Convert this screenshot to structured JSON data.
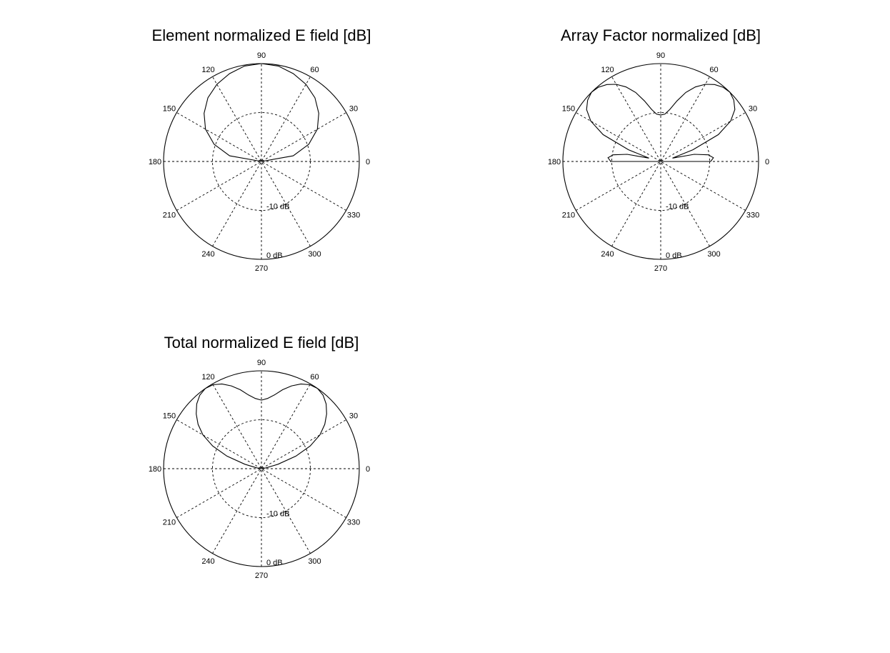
{
  "chart_data": [
    {
      "type": "line",
      "projection": "polar",
      "title": "Element normalized E field [dB]",
      "angle_ticks": [
        "0",
        "30",
        "60",
        "90",
        "120",
        "150",
        "180",
        "210",
        "240",
        "270",
        "300",
        "330"
      ],
      "radial_labels": [
        "-10 dB",
        "0 dB"
      ],
      "r_range_db": [
        -20,
        0
      ],
      "grid": true,
      "series": [
        {
          "theta_deg": [
            0,
            10,
            20,
            30,
            40,
            50,
            60,
            70,
            80,
            90,
            100,
            110,
            120,
            130,
            140,
            150,
            160,
            170,
            180
          ],
          "r_db": [
            -20,
            -13.4,
            -9.7,
            -6.8,
            -4.7,
            -3.0,
            -1.8,
            -0.9,
            -0.2,
            0,
            -0.2,
            -0.9,
            -1.8,
            -3.0,
            -4.7,
            -6.8,
            -9.7,
            -13.4,
            -20
          ]
        }
      ]
    },
    {
      "type": "line",
      "projection": "polar",
      "title": "Array Factor normalized [dB]",
      "angle_ticks": [
        "0",
        "30",
        "60",
        "90",
        "120",
        "150",
        "180",
        "210",
        "240",
        "270",
        "300",
        "330"
      ],
      "radial_labels": [
        "-10 dB",
        "0 dB"
      ],
      "r_range_db": [
        -20,
        0
      ],
      "grid": true,
      "series": [
        {
          "theta_deg": [
            0,
            4,
            8,
            12,
            16,
            20,
            25,
            30,
            35,
            40,
            45,
            50,
            55,
            60,
            65,
            70,
            75,
            80,
            85,
            90,
            95,
            100,
            105,
            110,
            115,
            120,
            125,
            130,
            135,
            140,
            145,
            150,
            155,
            160,
            164,
            168,
            172,
            176,
            180
          ],
          "r_db": [
            -9.8,
            -9.2,
            -10.2,
            -13,
            -17.5,
            -13,
            -7,
            -3.5,
            -1.5,
            -0.5,
            0,
            -0.2,
            -0.8,
            -1.8,
            -3.2,
            -5,
            -7.2,
            -9.2,
            -10.3,
            -10.5,
            -10.3,
            -9.2,
            -7.2,
            -5,
            -3.2,
            -1.8,
            -0.8,
            -0.2,
            0,
            -0.5,
            -1.5,
            -3.5,
            -7,
            -13,
            -17.5,
            -13,
            -10.2,
            -9.2,
            -9.8
          ]
        }
      ]
    },
    {
      "type": "line",
      "projection": "polar",
      "title": "Total normalized E field [dB]",
      "angle_ticks": [
        "0",
        "30",
        "60",
        "90",
        "120",
        "150",
        "180",
        "210",
        "240",
        "270",
        "300",
        "330"
      ],
      "radial_labels": [
        "-10 dB",
        "0 dB"
      ],
      "r_range_db": [
        -20,
        0
      ],
      "grid": true,
      "series": [
        {
          "theta_deg": [
            0,
            10,
            15,
            20,
            25,
            30,
            35,
            40,
            45,
            50,
            55,
            60,
            65,
            70,
            75,
            80,
            85,
            90,
            95,
            100,
            105,
            110,
            115,
            120,
            125,
            130,
            135,
            140,
            145,
            150,
            155,
            160,
            165,
            170,
            180
          ],
          "r_db": [
            -20,
            -19,
            -16.5,
            -12.5,
            -9,
            -6.2,
            -4.2,
            -2.6,
            -1.3,
            -0.4,
            0,
            -0.2,
            -0.9,
            -2,
            -3.3,
            -4.7,
            -5.6,
            -6,
            -5.6,
            -4.7,
            -3.3,
            -2,
            -0.9,
            -0.2,
            0,
            -0.4,
            -1.3,
            -2.6,
            -4.2,
            -6.2,
            -9,
            -12.5,
            -16.5,
            -19,
            -20
          ]
        }
      ]
    }
  ]
}
